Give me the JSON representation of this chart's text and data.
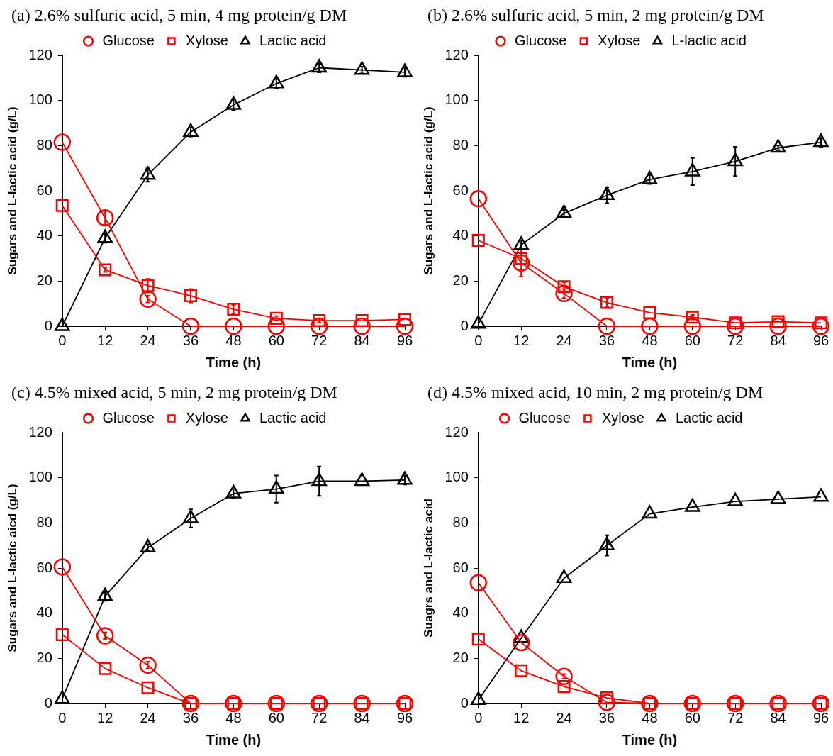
{
  "chart_data": [
    {
      "type": "line",
      "title": "(a) 2.6% sulfuric acid, 5 min, 4 mg protein/g DM",
      "xlabel": "Time (h)",
      "ylabel": "Sugars and L-lactic acid (g/L)",
      "x": [
        0,
        12,
        24,
        36,
        48,
        60,
        72,
        84,
        96
      ],
      "xlim": [
        0,
        96
      ],
      "xticks": [
        0,
        12,
        24,
        36,
        48,
        60,
        72,
        84,
        96
      ],
      "ylim": [
        0,
        120
      ],
      "yticks": [
        0,
        20,
        40,
        60,
        80,
        100,
        120
      ],
      "grid": false,
      "legend": "top",
      "line_style": "solid",
      "series": [
        {
          "name": "Glucose",
          "color": "#ff0000",
          "marker": "circle",
          "values": [
            81.5,
            48,
            12,
            0,
            0,
            0,
            0,
            0,
            0
          ],
          "errors": [
            null,
            3,
            1.5,
            null,
            null,
            null,
            null,
            null,
            null
          ]
        },
        {
          "name": "Xylose",
          "color": "#ff0000",
          "marker": "square",
          "values": [
            53.5,
            25,
            18,
            13.5,
            7.5,
            3.5,
            2.5,
            2.5,
            3
          ],
          "errors": [
            null,
            1,
            3,
            3,
            2,
            1,
            1,
            null,
            null
          ]
        },
        {
          "name": "Lactic acid",
          "color": "#000000",
          "marker": "triangle",
          "values": [
            0,
            39,
            67,
            86,
            98,
            107.5,
            114.5,
            113.5,
            112.5
          ],
          "errors": [
            null,
            2,
            3,
            2,
            2.5,
            2,
            2,
            1.5,
            2
          ]
        }
      ]
    },
    {
      "type": "line",
      "title": "(b) 2.6% sulfuric acid, 5 min, 2 mg protein/g DM",
      "xlabel": "Time (h)",
      "ylabel": "Sugars and L-lactic acid (g/L)",
      "x": [
        0,
        12,
        24,
        36,
        48,
        60,
        72,
        84,
        96
      ],
      "xlim": [
        0,
        96
      ],
      "xticks": [
        0,
        12,
        24,
        36,
        48,
        60,
        72,
        84,
        96
      ],
      "ylim": [
        0,
        120
      ],
      "yticks": [
        0,
        20,
        40,
        60,
        80,
        100,
        120
      ],
      "grid": false,
      "legend": "top",
      "line_style": "solid",
      "series": [
        {
          "name": "Glucose",
          "color": "#ff0000",
          "marker": "circle",
          "values": [
            56.5,
            28,
            14.5,
            0,
            0,
            0,
            0,
            0,
            0
          ],
          "errors": [
            null,
            6,
            2,
            null,
            null,
            null,
            null,
            null,
            null
          ]
        },
        {
          "name": "Xylose",
          "color": "#ff0000",
          "marker": "square",
          "values": [
            38,
            30,
            17.5,
            10.5,
            6,
            4,
            1.5,
            2,
            1.5
          ],
          "errors": [
            null,
            null,
            2,
            2,
            null,
            1,
            null,
            null,
            null
          ]
        },
        {
          "name": "L-lactic acid",
          "color": "#000000",
          "marker": "triangle",
          "values": [
            1,
            36,
            50,
            58,
            65,
            68.5,
            73,
            79,
            81.5
          ],
          "errors": [
            null,
            2,
            1.5,
            3.5,
            2,
            6,
            6.5,
            1,
            2
          ]
        }
      ]
    },
    {
      "type": "line",
      "title": "(c) 4.5% mixed acid, 5 min, 2 mg protein/g DM",
      "xlabel": "Time (h)",
      "ylabel": "Sugars and L-lactic aicd (g/L)",
      "x": [
        0,
        12,
        24,
        36,
        48,
        60,
        72,
        84,
        96
      ],
      "xlim": [
        0,
        96
      ],
      "xticks": [
        0,
        12,
        24,
        36,
        48,
        60,
        72,
        84,
        96
      ],
      "ylim": [
        0,
        120
      ],
      "yticks": [
        0,
        20,
        40,
        60,
        80,
        100,
        120
      ],
      "grid": false,
      "legend": "top",
      "line_style": "solid",
      "series": [
        {
          "name": "Glucose",
          "color": "#ff0000",
          "marker": "circle",
          "values": [
            60.5,
            30,
            17,
            0,
            0,
            0,
            0,
            0,
            0
          ],
          "errors": [
            null,
            1.5,
            1.5,
            null,
            null,
            null,
            null,
            null,
            null
          ]
        },
        {
          "name": "Xylose",
          "color": "#ff0000",
          "marker": "square",
          "values": [
            30.5,
            15.5,
            7,
            0,
            0,
            0,
            0,
            0,
            0
          ],
          "errors": [
            null,
            null,
            null,
            null,
            null,
            null,
            null,
            null,
            null
          ]
        },
        {
          "name": "Lactic acid",
          "color": "#000000",
          "marker": "triangle",
          "values": [
            2,
            47.5,
            69,
            82,
            93,
            95,
            98.5,
            98.5,
            99
          ],
          "errors": [
            null,
            2,
            1.5,
            4,
            2,
            6,
            6.5,
            null,
            2
          ]
        }
      ]
    },
    {
      "type": "line",
      "title": "(d) 4.5% mixed acid, 10 min, 2 mg protein/g DM",
      "xlabel": "Time (h)",
      "ylabel": "Suagrs and L-lactic acid",
      "x": [
        0,
        12,
        24,
        36,
        48,
        60,
        72,
        84,
        96
      ],
      "xlim": [
        0,
        96
      ],
      "xticks": [
        0,
        12,
        24,
        36,
        48,
        60,
        72,
        84,
        96
      ],
      "ylim": [
        0,
        120
      ],
      "yticks": [
        0,
        20,
        40,
        60,
        80,
        100,
        120
      ],
      "grid": false,
      "legend": "top",
      "line_style": "solid",
      "series": [
        {
          "name": "Glucose",
          "color": "#ff0000",
          "marker": "circle",
          "values": [
            53.5,
            27,
            12,
            0.5,
            0,
            0,
            0,
            0,
            0
          ],
          "errors": [
            null,
            null,
            1,
            null,
            null,
            null,
            null,
            null,
            null
          ]
        },
        {
          "name": "Xylose",
          "color": "#ff0000",
          "marker": "square",
          "values": [
            28.5,
            14.5,
            7.5,
            2.5,
            0,
            0,
            0,
            0,
            0
          ],
          "errors": [
            null,
            null,
            null,
            null,
            null,
            null,
            null,
            null,
            null
          ]
        },
        {
          "name": "Lactic acid",
          "color": "#000000",
          "marker": "triangle",
          "values": [
            1.5,
            29,
            55.5,
            70,
            84,
            87,
            89.5,
            90.5,
            91.5
          ],
          "errors": [
            null,
            null,
            null,
            4.5,
            null,
            null,
            null,
            null,
            null
          ]
        }
      ]
    }
  ]
}
